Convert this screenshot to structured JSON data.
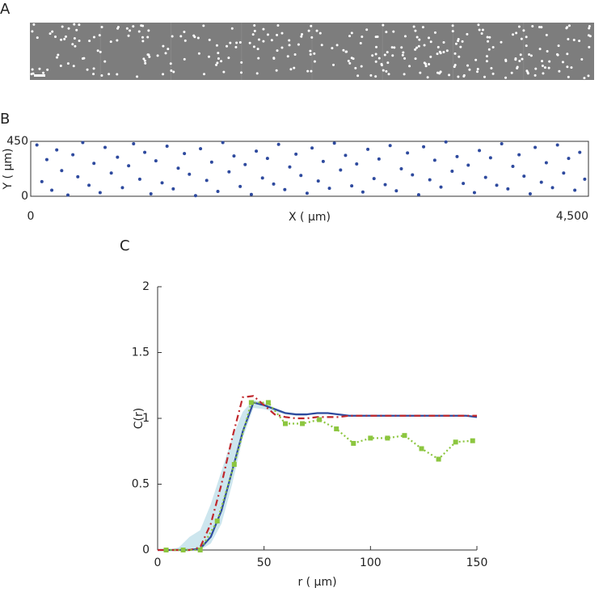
{
  "chart_data": [
    {
      "type": "image",
      "panel_label": "A"
    },
    {
      "type": "scatter",
      "panel_label": "B",
      "xlabel": "X ( µm)",
      "ylabel": "Y ( µm)",
      "color": "#2e4a9e",
      "xlim": [
        0,
        4500
      ],
      "ylim": [
        0,
        450
      ],
      "xticks": [
        0,
        {
          "value": 4500,
          "label": "4,500"
        }
      ],
      "yticks": [
        0,
        450
      ],
      "x": [
        50,
        90,
        130,
        170,
        210,
        250,
        300,
        340,
        380,
        420,
        470,
        510,
        560,
        600,
        650,
        700,
        740,
        790,
        830,
        880,
        920,
        970,
        1010,
        1060,
        1100,
        1150,
        1190,
        1240,
        1280,
        1330,
        1370,
        1420,
        1460,
        1510,
        1550,
        1600,
        1640,
        1690,
        1730,
        1780,
        1820,
        1870,
        1910,
        1960,
        2000,
        2050,
        2090,
        2140,
        2180,
        2230,
        2270,
        2320,
        2360,
        2410,
        2450,
        2500,
        2540,
        2590,
        2630,
        2680,
        2720,
        2770,
        2810,
        2860,
        2900,
        2950,
        2990,
        3040,
        3080,
        3130,
        3170,
        3220,
        3260,
        3310,
        3350,
        3400,
        3440,
        3490,
        3530,
        3580,
        3620,
        3670,
        3710,
        3760,
        3800,
        3850,
        3890,
        3940,
        3980,
        4030,
        4070,
        4120,
        4160,
        4210,
        4250,
        4300,
        4340,
        4390,
        4430,
        4470
      ],
      "y": [
        420,
        120,
        300,
        50,
        380,
        210,
        10,
        340,
        160,
        440,
        90,
        270,
        30,
        400,
        190,
        320,
        70,
        250,
        430,
        140,
        360,
        20,
        290,
        110,
        410,
        60,
        230,
        350,
        180,
        5,
        390,
        130,
        280,
        40,
        440,
        200,
        330,
        80,
        260,
        15,
        370,
        150,
        310,
        100,
        425,
        55,
        240,
        345,
        170,
        25,
        395,
        125,
        285,
        65,
        435,
        215,
        335,
        85,
        265,
        35,
        385,
        145,
        305,
        95,
        415,
        45,
        225,
        355,
        175,
        12,
        405,
        135,
        295,
        75,
        445,
        205,
        325,
        105,
        255,
        30,
        375,
        155,
        315,
        90,
        430,
        60,
        245,
        340,
        165,
        20,
        400,
        115,
        275,
        70,
        420,
        190,
        310,
        50,
        360,
        140
      ]
    },
    {
      "type": "line",
      "panel_label": "C",
      "xlabel": "r ( µm)",
      "ylabel": "C(r)",
      "xlim": [
        0,
        150
      ],
      "ylim": [
        0,
        2
      ],
      "xticks": [
        0,
        50,
        100,
        150
      ],
      "yticks": [
        0,
        0.5,
        1,
        1.5,
        2
      ],
      "band": {
        "color": "#cde6ee",
        "x": [
          0,
          5,
          10,
          15,
          20,
          25,
          30,
          35,
          40,
          45,
          50,
          55,
          60,
          65,
          70
        ],
        "lower": [
          0,
          0,
          0,
          0,
          0,
          0.05,
          0.2,
          0.5,
          0.85,
          1.08,
          1.07,
          1.05,
          1.03,
          1.02,
          1.02
        ],
        "upper": [
          0,
          0,
          0.02,
          0.1,
          0.15,
          0.35,
          0.6,
          0.85,
          1.05,
          1.14,
          1.12,
          1.08,
          1.05,
          1.04,
          1.04
        ]
      },
      "series": [
        {
          "color": "#2e4a9e",
          "dash": "none",
          "marker": "none",
          "x": [
            0,
            5,
            10,
            15,
            20,
            25,
            30,
            35,
            40,
            45,
            50,
            55,
            60,
            65,
            70,
            75,
            80,
            85,
            90,
            95,
            100,
            105,
            110,
            115,
            120,
            125,
            130,
            135,
            140,
            145,
            150
          ],
          "values": [
            0,
            0,
            0,
            0,
            0.01,
            0.1,
            0.3,
            0.6,
            0.9,
            1.12,
            1.1,
            1.07,
            1.04,
            1.03,
            1.03,
            1.04,
            1.04,
            1.03,
            1.02,
            1.02,
            1.02,
            1.02,
            1.02,
            1.02,
            1.02,
            1.02,
            1.02,
            1.02,
            1.02,
            1.02,
            1.01
          ]
        },
        {
          "color": "#c0282d",
          "dash": "8 4 2 4",
          "marker": "none",
          "x": [
            0,
            5,
            10,
            15,
            20,
            25,
            30,
            35,
            40,
            45,
            50,
            55,
            60,
            65,
            70,
            75,
            80,
            85,
            90,
            95,
            100,
            105,
            110,
            115,
            120,
            125,
            130,
            135,
            140,
            145,
            150
          ],
          "values": [
            0,
            0,
            0,
            0,
            0.02,
            0.2,
            0.5,
            0.85,
            1.16,
            1.17,
            1.1,
            1.03,
            1.01,
            1.0,
            1.0,
            1.01,
            1.01,
            1.01,
            1.02,
            1.02,
            1.02,
            1.02,
            1.02,
            1.02,
            1.02,
            1.02,
            1.02,
            1.02,
            1.02,
            1.02,
            1.02
          ]
        },
        {
          "color": "#8cc63f",
          "dash": "2 3",
          "marker": "square",
          "x": [
            4,
            12,
            20,
            28,
            36,
            44,
            52,
            60,
            68,
            76,
            84,
            92,
            100,
            108,
            116,
            124,
            132,
            140,
            148
          ],
          "values": [
            0,
            0,
            0,
            0.22,
            0.65,
            1.12,
            1.12,
            0.96,
            0.96,
            0.99,
            0.92,
            0.81,
            0.85,
            0.85,
            0.87,
            0.77,
            0.69,
            0.82,
            0.83
          ]
        }
      ]
    }
  ]
}
